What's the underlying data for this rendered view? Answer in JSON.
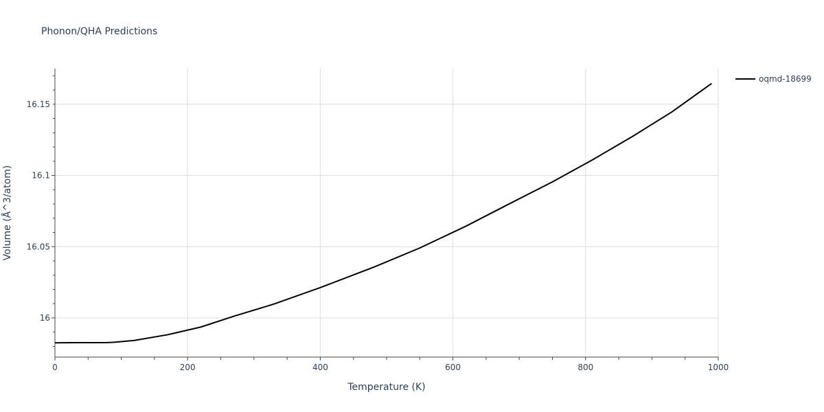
{
  "chart_data": {
    "type": "line",
    "title": "Phonon/QHA Predictions",
    "xlabel": "Temperature (K)",
    "ylabel": "Volume (Å^3/atom)",
    "xlim": [
      0,
      1000
    ],
    "ylim": [
      15.9725,
      16.175
    ],
    "x_ticks": [
      0,
      200,
      400,
      600,
      800,
      1000
    ],
    "x_tick_labels": [
      "0",
      "200",
      "400",
      "600",
      "800",
      "1000"
    ],
    "y_ticks": [
      16,
      16.05,
      16.1,
      16.15
    ],
    "y_tick_labels": [
      "16",
      "16.05",
      "16.1",
      "16.15"
    ],
    "grid": true,
    "legend_position": "top-right",
    "series": [
      {
        "name": "oqmd-18699",
        "color": "#000000",
        "x": [
          0,
          30,
          80,
          90,
          120,
          170,
          220,
          270,
          330,
          400,
          480,
          550,
          620,
          680,
          750,
          810,
          870,
          930,
          990
        ],
        "y": [
          15.9825,
          15.9826,
          15.9827,
          15.9829,
          15.9842,
          15.9882,
          15.9936,
          16.0012,
          16.0097,
          16.0213,
          16.0355,
          16.0491,
          16.0645,
          16.0789,
          16.0955,
          16.1109,
          16.1272,
          16.1446,
          16.1646
        ]
      }
    ]
  }
}
